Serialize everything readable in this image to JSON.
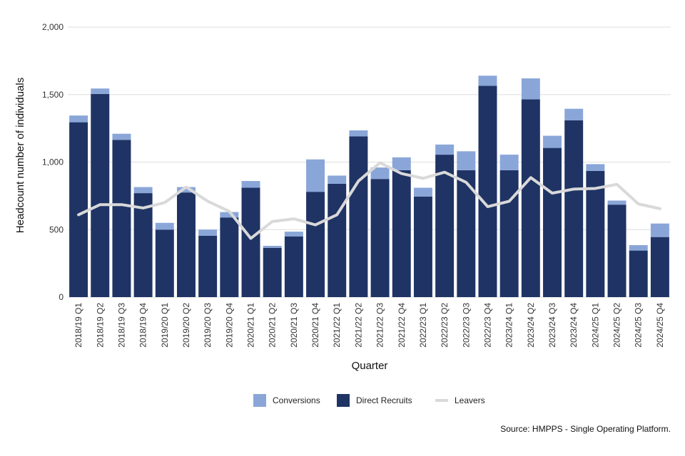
{
  "chart_data": {
    "type": "bar",
    "stacked": true,
    "xlabel": "Quarter",
    "ylabel": "Headcount number of individuals",
    "ylim": [
      0,
      2000
    ],
    "yticks": [
      0,
      500,
      1000,
      1500,
      2000
    ],
    "ytick_labels": [
      "0",
      "500",
      "1,000",
      "1,500",
      "2,000"
    ],
    "grid": true,
    "legend_position": "bottom",
    "categories": [
      "2018/19 Q1",
      "2018/19 Q2",
      "2018/19 Q3",
      "2018/19 Q4",
      "2019/20 Q1",
      "2019/20 Q2",
      "2019/20 Q3",
      "2019/20 Q4",
      "2020/21 Q1",
      "2020/21 Q2",
      "2020/21 Q3",
      "2020/21 Q4",
      "2021/22 Q1",
      "2021/22 Q2",
      "2021/22 Q3",
      "2021/22 Q4",
      "2022/23 Q1",
      "2022/23 Q2",
      "2022/23 Q3",
      "2022/23 Q4",
      "2023/24 Q1",
      "2023/24 Q2",
      "2023/24 Q3",
      "2023/24 Q4",
      "2024/25 Q1",
      "2024/25 Q2",
      "2024/25 Q3",
      "2024/25 Q4"
    ],
    "series": [
      {
        "name": "Direct Recruits",
        "kind": "bar",
        "color": "#1f3464",
        "values": [
          1295,
          1505,
          1165,
          770,
          500,
          775,
          455,
          590,
          810,
          365,
          450,
          780,
          840,
          1190,
          875,
          940,
          745,
          1055,
          940,
          1565,
          940,
          1465,
          1105,
          1310,
          935,
          685,
          345,
          445
        ]
      },
      {
        "name": "Conversions",
        "kind": "bar",
        "color": "#8aa6d9",
        "values": [
          50,
          40,
          45,
          45,
          50,
          40,
          45,
          40,
          50,
          15,
          35,
          240,
          60,
          45,
          85,
          95,
          65,
          75,
          140,
          75,
          115,
          155,
          90,
          85,
          50,
          30,
          40,
          100
        ]
      },
      {
        "name": "Leavers",
        "kind": "line",
        "color": "#d9d9d9",
        "values": [
          610,
          685,
          685,
          660,
          700,
          815,
          710,
          635,
          435,
          560,
          580,
          535,
          610,
          860,
          995,
          915,
          880,
          925,
          850,
          670,
          710,
          885,
          770,
          800,
          805,
          835,
          690,
          655
        ]
      }
    ],
    "legend": [
      "Conversions",
      "Direct Recruits",
      "Leavers"
    ]
  },
  "footer": {
    "source": "Source: HMPPS - Single Operating Platform."
  }
}
